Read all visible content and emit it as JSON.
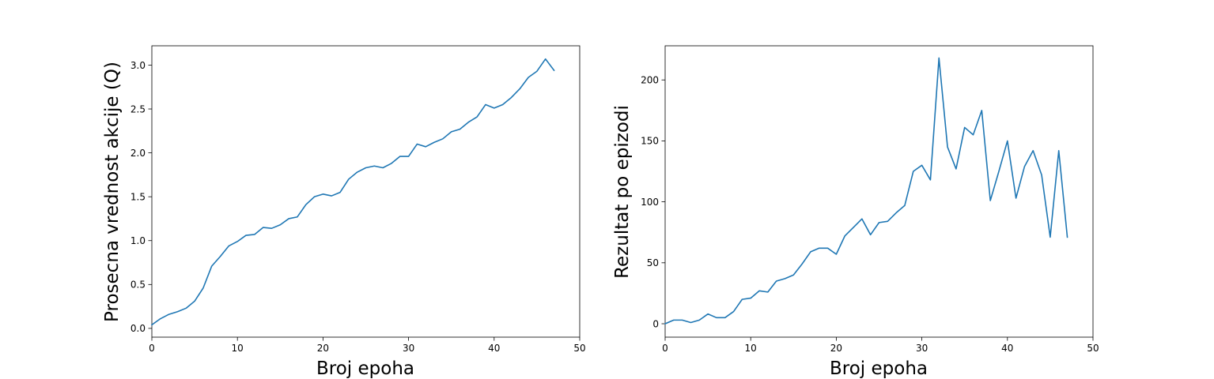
{
  "chart_data": [
    {
      "type": "line",
      "title": "",
      "xlabel": "Broj epoha",
      "ylabel": "Prosecna vrednost akcije (Q)",
      "xlim": [
        0,
        50
      ],
      "ylim": [
        -0.1,
        3.22
      ],
      "xticks": [
        0,
        10,
        20,
        30,
        40,
        50
      ],
      "yticks": [
        0.0,
        0.5,
        1.0,
        1.5,
        2.0,
        2.5,
        3.0
      ],
      "ytick_labels": [
        "0.0",
        "0.5",
        "1.0",
        "1.5",
        "2.0",
        "2.5",
        "3.0"
      ],
      "grid": false,
      "color": "#1f77b4",
      "series": [
        {
          "x": [
            0,
            1,
            2,
            3,
            4,
            5,
            6,
            7,
            8,
            9,
            10,
            11,
            12,
            13,
            14,
            15,
            16,
            17,
            18,
            19,
            20,
            21,
            22,
            23,
            24,
            25,
            26,
            27,
            28,
            29,
            30,
            31,
            32,
            33,
            34,
            35,
            36,
            37,
            38,
            39,
            40,
            41,
            42,
            43,
            44,
            45,
            46,
            47
          ],
          "values": [
            0.04,
            0.11,
            0.16,
            0.19,
            0.23,
            0.31,
            0.46,
            0.71,
            0.82,
            0.94,
            0.99,
            1.06,
            1.07,
            1.15,
            1.14,
            1.18,
            1.25,
            1.27,
            1.41,
            1.5,
            1.53,
            1.51,
            1.55,
            1.7,
            1.78,
            1.83,
            1.85,
            1.83,
            1.88,
            1.96,
            1.96,
            2.1,
            2.07,
            2.12,
            2.16,
            2.24,
            2.27,
            2.35,
            2.41,
            2.55,
            2.51,
            2.55,
            2.63,
            2.73,
            2.86,
            2.93,
            3.07,
            2.94
          ]
        }
      ]
    },
    {
      "type": "line",
      "title": "",
      "xlabel": "Broj epoha",
      "ylabel": "Rezultat po epizodi",
      "xlim": [
        0,
        50
      ],
      "ylim": [
        -11,
        228
      ],
      "xticks": [
        0,
        10,
        20,
        30,
        40,
        50
      ],
      "yticks": [
        0,
        50,
        100,
        150,
        200
      ],
      "ytick_labels": [
        "0",
        "50",
        "100",
        "150",
        "200"
      ],
      "grid": false,
      "color": "#1f77b4",
      "series": [
        {
          "x": [
            0,
            1,
            2,
            3,
            4,
            5,
            6,
            7,
            8,
            9,
            10,
            11,
            12,
            13,
            14,
            15,
            16,
            17,
            18,
            19,
            20,
            21,
            22,
            23,
            24,
            25,
            26,
            27,
            28,
            29,
            30,
            31,
            32,
            33,
            34,
            35,
            36,
            37,
            38,
            39,
            40,
            41,
            42,
            43,
            44,
            45,
            46,
            47
          ],
          "values": [
            0,
            3,
            3,
            1,
            3,
            8,
            5,
            5,
            10,
            20,
            21,
            27,
            26,
            35,
            37,
            40,
            49,
            59,
            62,
            62,
            57,
            72,
            79,
            86,
            73,
            83,
            84,
            91,
            97,
            125,
            130,
            118,
            218,
            145,
            127,
            161,
            155,
            175,
            101,
            125,
            150,
            103,
            129,
            142,
            122,
            71,
            142,
            71
          ]
        }
      ]
    }
  ]
}
